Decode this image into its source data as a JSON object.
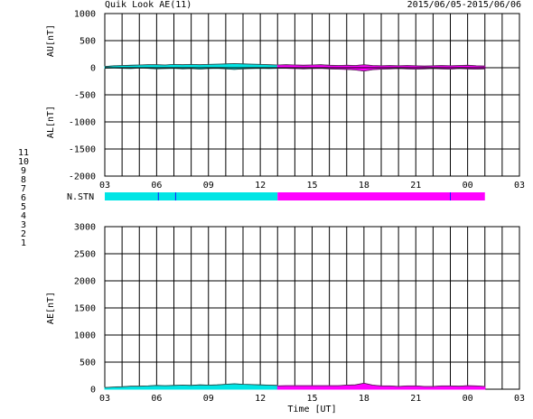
{
  "header": {
    "title": "Quik Look AE(11)",
    "date_range": "2015/06/05-2015/06/06"
  },
  "station_legend": [
    {
      "label": "11",
      "color": "#00e5e5"
    },
    {
      "label": "10",
      "color": "#ff00ff"
    },
    {
      "label": "9",
      "color": "#1a1aff"
    },
    {
      "label": "8",
      "color": "#e5e5a0"
    },
    {
      "label": "7",
      "color": "#e5e500"
    },
    {
      "label": "6",
      "color": "#ff0000"
    },
    {
      "label": "5",
      "color": "#bfbfbf"
    },
    {
      "label": "4",
      "color": "#bfbfbf"
    },
    {
      "label": "3",
      "color": "#00c8c8"
    },
    {
      "label": "2",
      "color": "#c800c8"
    },
    {
      "label": "1",
      "color": "#1a1aff"
    }
  ],
  "chart_data": [
    {
      "id": "au-al",
      "type": "line",
      "ylabel_top": "AU[nT]",
      "ylabel_bottom": "AL[nT]",
      "ylim": [
        -2000,
        1000
      ],
      "ytick_labels": [
        "1000",
        "500",
        "0",
        "-500",
        "-1000",
        "-1500",
        "-2000"
      ],
      "xlim": [
        3,
        27
      ],
      "xtick_labels": [
        "03",
        "06",
        "09",
        "12",
        "15",
        "18",
        "21",
        "00",
        "03"
      ],
      "grid": true,
      "series": [
        {
          "color": "#00e5e5",
          "x": [
            3,
            3.5,
            4,
            4.5,
            5,
            5.5,
            6,
            6.5,
            7,
            7.5,
            8,
            8.5,
            9,
            9.5,
            10,
            10.5,
            11,
            11.5,
            12,
            12.5,
            13
          ],
          "au": [
            20,
            35,
            40,
            45,
            50,
            55,
            55,
            50,
            60,
            55,
            60,
            55,
            60,
            65,
            70,
            75,
            70,
            65,
            60,
            55,
            50
          ],
          "al": [
            -10,
            -5,
            -10,
            -15,
            -5,
            -10,
            -20,
            -15,
            -10,
            -20,
            -15,
            -25,
            -15,
            -10,
            -20,
            -30,
            -20,
            -15,
            -10,
            -15,
            -10
          ]
        },
        {
          "color": "#ff00ff",
          "x": [
            13,
            13.5,
            14,
            14.5,
            15,
            15.5,
            16,
            16.5,
            17,
            17.5,
            18,
            18.5,
            19,
            19.5,
            20,
            20.5,
            21,
            21.5,
            22,
            22.5,
            23,
            23.5,
            24,
            24.5,
            25
          ],
          "au": [
            50,
            55,
            50,
            45,
            50,
            55,
            45,
            40,
            45,
            40,
            55,
            40,
            35,
            40,
            35,
            40,
            35,
            30,
            35,
            40,
            35,
            40,
            45,
            35,
            30
          ],
          "al": [
            -10,
            -10,
            -15,
            -20,
            -15,
            -10,
            -20,
            -25,
            -30,
            -40,
            -60,
            -35,
            -25,
            -20,
            -15,
            -20,
            -25,
            -20,
            -15,
            -20,
            -25,
            -15,
            -20,
            -25,
            -20
          ]
        }
      ]
    },
    {
      "id": "n-stn",
      "type": "bar",
      "label": "N.STN",
      "segments": [
        {
          "start": 3,
          "end": 13,
          "station": "11"
        },
        {
          "start": 13,
          "end": 25,
          "station": "10"
        }
      ],
      "markers": [
        {
          "x": 6.1,
          "color": "#1a1aff"
        },
        {
          "x": 7.1,
          "color": "#1a1aff"
        },
        {
          "x": 23,
          "color": "#1a1aff"
        }
      ]
    },
    {
      "id": "ae",
      "type": "area",
      "ylabel": "AE[nT]",
      "ylim": [
        0,
        3000
      ],
      "ytick_labels": [
        "3000",
        "2500",
        "2000",
        "1500",
        "1000",
        "500",
        "0"
      ],
      "xlim": [
        3,
        27
      ],
      "xtick_labels": [
        "03",
        "06",
        "09",
        "12",
        "15",
        "18",
        "21",
        "00",
        "03"
      ],
      "xlabel": "Time [UT]",
      "grid": true,
      "series": [
        {
          "color": "#00e5e5",
          "x": [
            3,
            3.5,
            4,
            4.5,
            5,
            5.5,
            6,
            6.5,
            7,
            7.5,
            8,
            8.5,
            9,
            9.5,
            10,
            10.5,
            11,
            11.5,
            12,
            12.5,
            13
          ],
          "values": [
            30,
            40,
            45,
            55,
            55,
            60,
            70,
            65,
            70,
            75,
            70,
            80,
            75,
            80,
            90,
            100,
            90,
            85,
            80,
            75,
            70
          ]
        },
        {
          "color": "#ff00ff",
          "x": [
            13,
            13.5,
            14,
            14.5,
            15,
            15.5,
            16,
            16.5,
            17,
            17.5,
            18,
            18.5,
            19,
            19.5,
            20,
            20.5,
            21,
            21.5,
            22,
            22.5,
            23,
            23.5,
            24,
            24.5,
            25
          ],
          "values": [
            60,
            65,
            65,
            65,
            65,
            65,
            65,
            65,
            75,
            80,
            110,
            75,
            60,
            60,
            50,
            60,
            60,
            50,
            50,
            60,
            60,
            55,
            65,
            60,
            50
          ]
        }
      ]
    }
  ]
}
